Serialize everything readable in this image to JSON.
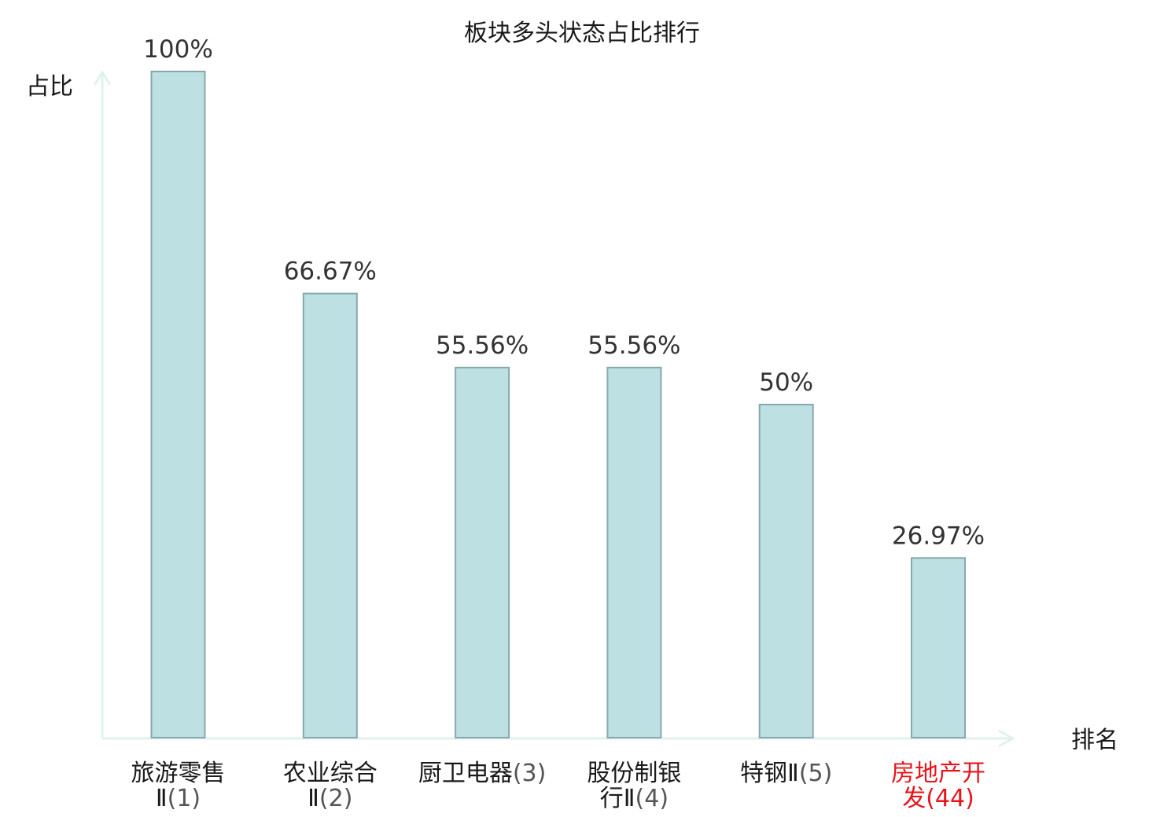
{
  "chart_data": {
    "type": "bar",
    "title": "板块多头状态占比排行",
    "ylabel": "占比",
    "xlabel": "排名",
    "ylim": [
      0,
      100
    ],
    "grid": false,
    "colors": {
      "bar_fill": "#bde0e3",
      "bar_stroke": "#86a8ad",
      "axis": "#e0f2ef",
      "label": "#1a1a1a",
      "highlight": "#e8141b"
    },
    "categories": [
      {
        "lines": [
          [
            "旅游零售",
            ""
          ],
          [
            "Ⅱ",
            "(1)"
          ]
        ],
        "highlight": false
      },
      {
        "lines": [
          [
            "农业综合",
            ""
          ],
          [
            "Ⅱ",
            "(2)"
          ]
        ],
        "highlight": false
      },
      {
        "lines": [
          [
            "厨卫电器",
            "(3)"
          ]
        ],
        "highlight": false
      },
      {
        "lines": [
          [
            "股份制银",
            ""
          ],
          [
            "行Ⅱ",
            "(4)"
          ]
        ],
        "highlight": false
      },
      {
        "lines": [
          [
            "特钢Ⅱ",
            "(5)"
          ]
        ],
        "highlight": false
      },
      {
        "lines": [
          [
            "房地产开",
            ""
          ],
          [
            "发",
            "(44)"
          ]
        ],
        "highlight": true
      }
    ],
    "values": [
      100,
      66.67,
      55.56,
      55.56,
      50,
      26.97
    ],
    "value_labels": [
      "100%",
      "66.67%",
      "55.56%",
      "55.56%",
      "50%",
      "26.97%"
    ]
  }
}
